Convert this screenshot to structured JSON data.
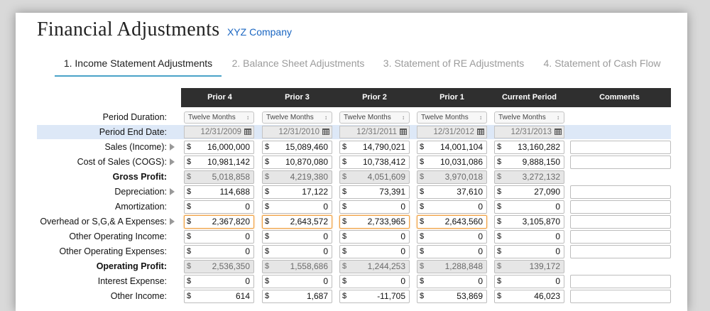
{
  "title": "Financial Adjustments",
  "company": "XYZ Company",
  "tabs": [
    {
      "label": "1. Income Statement Adjustments",
      "active": true
    },
    {
      "label": "2. Balance Sheet Adjustments",
      "active": false
    },
    {
      "label": "3. Statement of RE Adjustments",
      "active": false
    },
    {
      "label": "4. Statement of Cash Flow",
      "active": false
    }
  ],
  "columns": [
    "Prior 4",
    "Prior 3",
    "Prior 2",
    "Prior 1",
    "Current Period"
  ],
  "comments_header": "Comments",
  "currency_symbol": "$",
  "period_duration": {
    "label": "Period Duration:",
    "values": [
      "Twelve Months",
      "Twelve Months",
      "Twelve Months",
      "Twelve Months",
      "Twelve Months"
    ]
  },
  "period_end": {
    "label": "Period End Date:",
    "values": [
      "12/31/2009",
      "12/31/2010",
      "12/31/2011",
      "12/31/2012",
      "12/31/2013"
    ]
  },
  "rows": [
    {
      "label": "Sales (Income):",
      "bold": false,
      "arrow": true,
      "readonly": false,
      "comment": true,
      "values": [
        "16,000,000",
        "15,089,460",
        "14,790,021",
        "14,001,104",
        "13,160,282"
      ]
    },
    {
      "label": "Cost of Sales (COGS):",
      "bold": false,
      "arrow": true,
      "readonly": false,
      "comment": true,
      "values": [
        "10,981,142",
        "10,870,080",
        "10,738,412",
        "10,031,086",
        "9,888,150"
      ]
    },
    {
      "label": "Gross Profit:",
      "bold": true,
      "arrow": false,
      "readonly": true,
      "comment": false,
      "values": [
        "5,018,858",
        "4,219,380",
        "4,051,609",
        "3,970,018",
        "3,272,132"
      ]
    },
    {
      "label": "Depreciation:",
      "bold": false,
      "arrow": true,
      "readonly": false,
      "comment": true,
      "values": [
        "114,688",
        "17,122",
        "73,391",
        "37,610",
        "27,090"
      ]
    },
    {
      "label": "Amortization:",
      "bold": false,
      "arrow": false,
      "readonly": false,
      "comment": true,
      "values": [
        "0",
        "0",
        "0",
        "0",
        "0"
      ]
    },
    {
      "label": "Overhead or S,G,& A Expenses:",
      "bold": false,
      "arrow": true,
      "readonly": false,
      "comment": true,
      "highlight": [
        true,
        true,
        true,
        true,
        false
      ],
      "values": [
        "2,367,820",
        "2,643,572",
        "2,733,965",
        "2,643,560",
        "3,105,870"
      ]
    },
    {
      "label": "Other Operating Income:",
      "bold": false,
      "arrow": false,
      "readonly": false,
      "comment": true,
      "values": [
        "0",
        "0",
        "0",
        "0",
        "0"
      ]
    },
    {
      "label": "Other Operating Expenses:",
      "bold": false,
      "arrow": false,
      "readonly": false,
      "comment": true,
      "values": [
        "0",
        "0",
        "0",
        "0",
        "0"
      ]
    },
    {
      "label": "Operating Profit:",
      "bold": true,
      "arrow": false,
      "readonly": true,
      "comment": false,
      "values": [
        "2,536,350",
        "1,558,686",
        "1,244,253",
        "1,288,848",
        "139,172"
      ]
    },
    {
      "label": "Interest Expense:",
      "bold": false,
      "arrow": false,
      "readonly": false,
      "comment": true,
      "values": [
        "0",
        "0",
        "0",
        "0",
        "0"
      ]
    },
    {
      "label": "Other Income:",
      "bold": false,
      "arrow": false,
      "readonly": false,
      "comment": true,
      "values": [
        "614",
        "1,687",
        "-11,705",
        "53,869",
        "46,023"
      ]
    }
  ]
}
